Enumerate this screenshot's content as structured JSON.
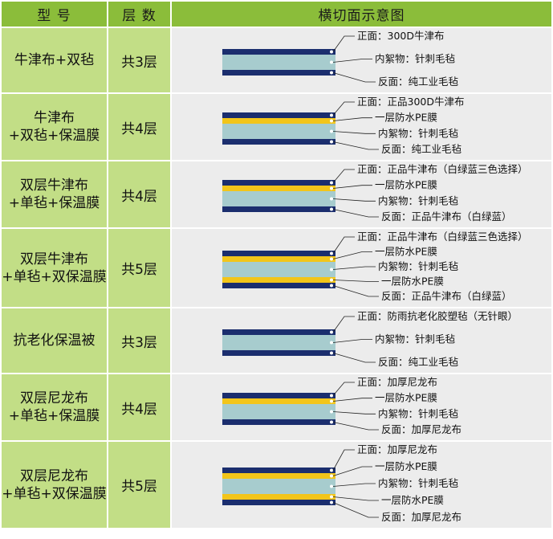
{
  "header": {
    "model": "型 号",
    "layers": "层 数",
    "diagram": "横切面示意图"
  },
  "colors": {
    "navy": "#1b2e6e",
    "yellow": "#f2c51a",
    "teal": "#a7ccce",
    "green_header": "#8bbd3a",
    "green_cell": "#c2de86",
    "gray_cell": "#ececec"
  },
  "rows": [
    {
      "model": [
        "牛津布+双毡"
      ],
      "layers": "共3层",
      "stack": [
        "navy",
        "teal",
        "navy"
      ],
      "labels": [
        "正面：300D牛津布",
        "内絮物：针刺毛毡",
        "反面：纯工业毛毡"
      ]
    },
    {
      "model": [
        "牛津布",
        "+双毡+保温膜"
      ],
      "layers": "共4层",
      "stack": [
        "navy",
        "yellow",
        "teal",
        "navy"
      ],
      "labels": [
        "正面：正品300D牛津布",
        "一层防水PE膜",
        "内絮物：针刺毛毡",
        "反面：纯工业毛毡"
      ]
    },
    {
      "model": [
        "双层牛津布",
        "+单毡+保温膜"
      ],
      "layers": "共4层",
      "stack": [
        "navy",
        "yellow",
        "teal",
        "navy"
      ],
      "labels": [
        "正面：正品牛津布（白绿蓝三色选择）",
        "一层防水PE膜",
        "内絮物：针刺毛毡",
        "反面：正品牛津布（白绿蓝）"
      ]
    },
    {
      "model": [
        "双层牛津布",
        "+单毡+双保温膜"
      ],
      "layers": "共5层",
      "stack": [
        "navy",
        "yellow",
        "teal",
        "yellow",
        "navy"
      ],
      "labels": [
        "正面：正品牛津布（白绿蓝三色选择）",
        "一层防水PE膜",
        "内絮物：针刺毛毡",
        "一层防水PE膜",
        "反面：正品牛津布（白绿蓝）"
      ]
    },
    {
      "model": [
        "抗老化保温被"
      ],
      "layers": "共3层",
      "stack": [
        "navy",
        "teal",
        "navy"
      ],
      "labels": [
        "正面：防雨抗老化胶塑毡（无针眼）",
        "内絮物：针刺毛毡",
        "反面：纯工业毛毡"
      ]
    },
    {
      "model": [
        "双层尼龙布",
        "+单毡+保温膜"
      ],
      "layers": "共4层",
      "stack": [
        "navy",
        "yellow",
        "teal",
        "navy"
      ],
      "labels": [
        "正面：加厚尼龙布",
        "一层防水PE膜",
        "内絮物：针刺毛毡",
        "反面：加厚尼龙布"
      ]
    },
    {
      "model": [
        "双层尼龙布",
        "+单毡+双保温膜"
      ],
      "layers": "共5层",
      "stack": [
        "navy",
        "yellow",
        "teal",
        "yellow",
        "navy"
      ],
      "labels": [
        "正面：加厚尼龙布",
        "一层防水PE膜",
        "内絮物：针刺毛毡",
        "一层防水PE膜",
        "反面：加厚尼龙布"
      ]
    }
  ]
}
